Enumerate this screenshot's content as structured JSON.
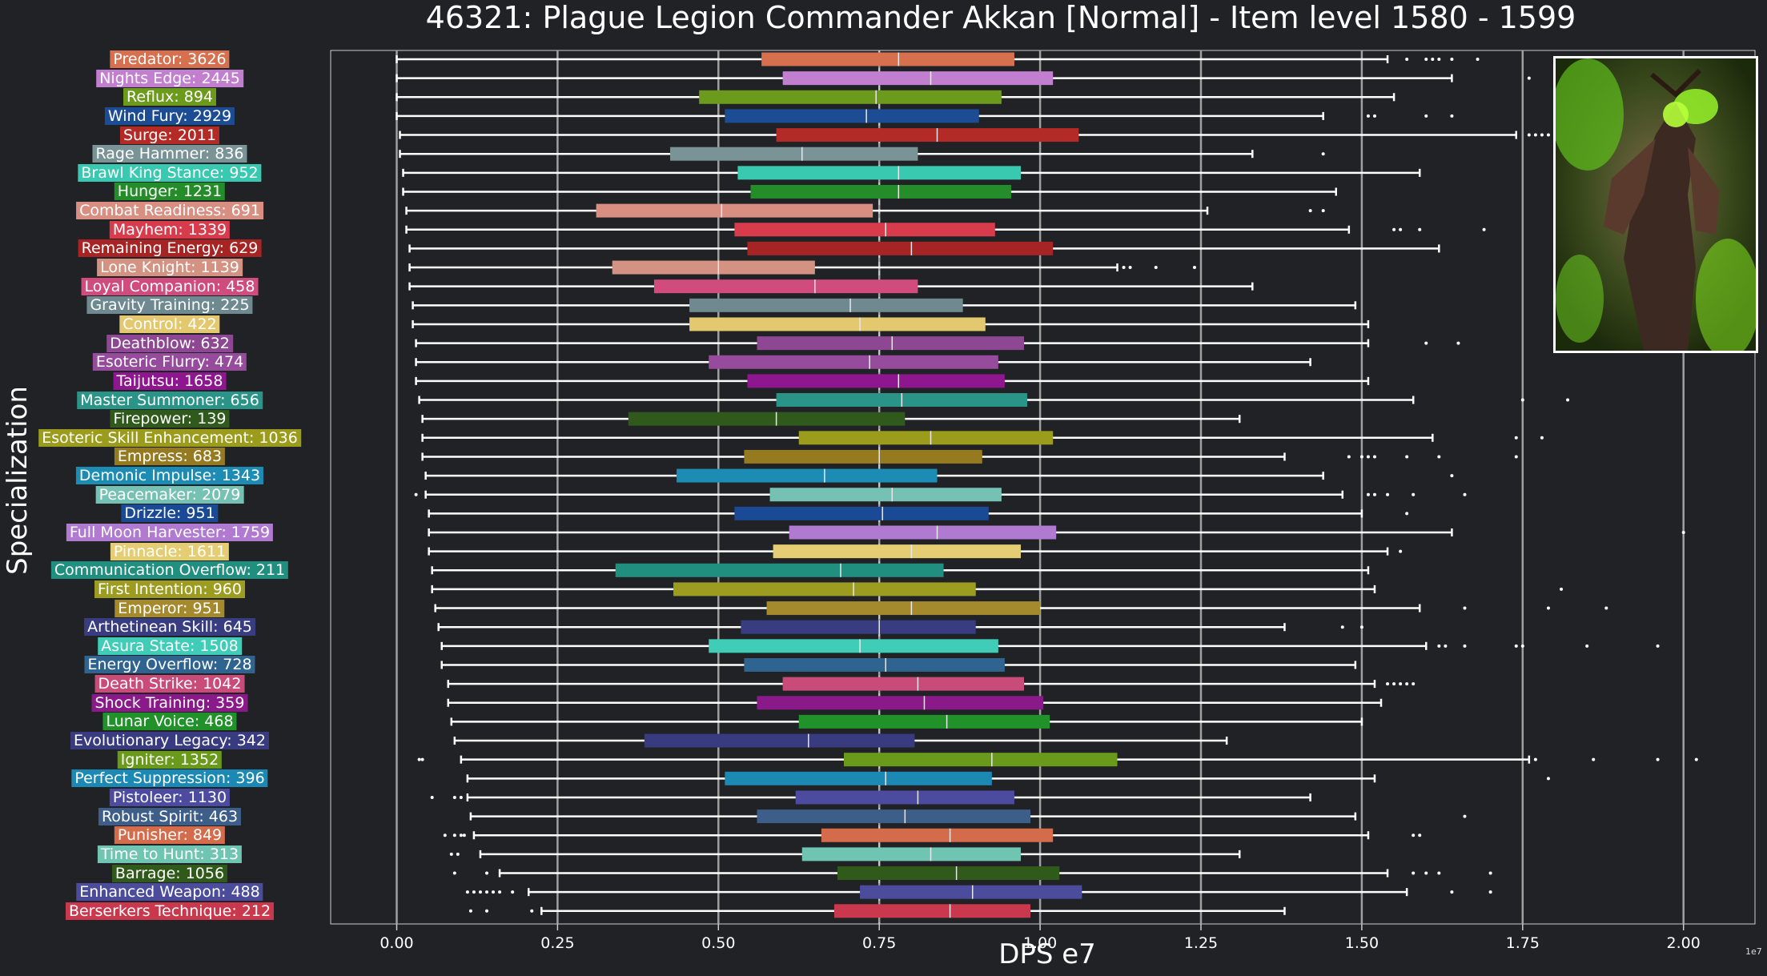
{
  "chart_data": {
    "type": "boxplot",
    "title": "46321: Plague Legion Commander Akkan [Normal] - Item level 1580 - 1599",
    "xlabel": "DPS e7",
    "ylabel": "Specialization",
    "x_offset_label": "1e7",
    "xlim": [
      -0.1,
      2.12
    ],
    "xticks": [
      {
        "value": 0.0,
        "label": "0.00"
      },
      {
        "value": 0.25,
        "label": "0.25"
      },
      {
        "value": 0.5,
        "label": "0.50"
      },
      {
        "value": 0.75,
        "label": "0.75"
      },
      {
        "value": 1.0,
        "label": "1.00"
      },
      {
        "value": 1.25,
        "label": "1.25"
      },
      {
        "value": 1.5,
        "label": "1.50"
      },
      {
        "value": 1.75,
        "label": "1.75"
      },
      {
        "value": 2.0,
        "label": "2.00"
      }
    ],
    "reference_line": 0.75,
    "series": [
      {
        "label": "Predator: 3626",
        "color": "#d6704e",
        "whisker_low": 0.0,
        "q1": 0.567,
        "median": 0.78,
        "q3": 0.96,
        "whisker_high": 1.54,
        "outliers": [
          1.57,
          1.6,
          1.61,
          1.62,
          1.64,
          1.68
        ]
      },
      {
        "label": "Nights Edge: 2445",
        "color": "#c27ecf",
        "whisker_low": 0.0,
        "q1": 0.6,
        "median": 0.83,
        "q3": 1.02,
        "whisker_high": 1.64,
        "outliers": [
          1.76
        ]
      },
      {
        "label": "Reflux: 894",
        "color": "#6b9a1c",
        "whisker_low": 0.0,
        "q1": 0.47,
        "median": 0.745,
        "q3": 0.94,
        "whisker_high": 1.55,
        "outliers": []
      },
      {
        "label": "Wind Fury: 2929",
        "color": "#1c4c94",
        "whisker_low": 0.0,
        "q1": 0.51,
        "median": 0.73,
        "q3": 0.905,
        "whisker_high": 1.44,
        "outliers": [
          1.51,
          1.52,
          1.6,
          1.64
        ]
      },
      {
        "label": "Surge: 2011",
        "color": "#b42a27",
        "whisker_low": 0.005,
        "q1": 0.59,
        "median": 0.84,
        "q3": 1.06,
        "whisker_high": 1.74,
        "outliers": [
          1.76,
          1.77,
          1.78,
          1.79,
          1.8
        ]
      },
      {
        "label": "Rage Hammer: 836",
        "color": "#7a9396",
        "whisker_low": 0.005,
        "q1": 0.425,
        "median": 0.63,
        "q3": 0.81,
        "whisker_high": 1.33,
        "outliers": [
          1.44
        ]
      },
      {
        "label": "Brawl King Stance: 952",
        "color": "#38c9b0",
        "whisker_low": 0.01,
        "q1": 0.53,
        "median": 0.78,
        "q3": 0.97,
        "whisker_high": 1.59,
        "outliers": []
      },
      {
        "label": "Hunger: 1231",
        "color": "#248c28",
        "whisker_low": 0.01,
        "q1": 0.55,
        "median": 0.78,
        "q3": 0.955,
        "whisker_high": 1.46,
        "outliers": []
      },
      {
        "label": "Combat Readiness: 691",
        "color": "#d98e82",
        "whisker_low": 0.015,
        "q1": 0.31,
        "median": 0.505,
        "q3": 0.74,
        "whisker_high": 1.26,
        "outliers": [
          1.42,
          1.44
        ]
      },
      {
        "label": "Mayhem: 1339",
        "color": "#d83c4c",
        "whisker_low": 0.015,
        "q1": 0.525,
        "median": 0.76,
        "q3": 0.93,
        "whisker_high": 1.48,
        "outliers": [
          1.55,
          1.56,
          1.59,
          1.69
        ]
      },
      {
        "label": "Remaining Energy: 629",
        "color": "#a72424",
        "whisker_low": 0.02,
        "q1": 0.545,
        "median": 0.8,
        "q3": 1.02,
        "whisker_high": 1.62,
        "outliers": []
      },
      {
        "label": "Lone Knight: 1139",
        "color": "#d39282",
        "whisker_low": 0.02,
        "q1": 0.335,
        "median": 0.5,
        "q3": 0.65,
        "whisker_high": 1.12,
        "outliers": [
          1.13,
          1.14,
          1.18,
          1.24
        ]
      },
      {
        "label": "Loyal Companion: 458",
        "color": "#cf4c7c",
        "whisker_low": 0.02,
        "q1": 0.4,
        "median": 0.65,
        "q3": 0.81,
        "whisker_high": 1.33,
        "outliers": []
      },
      {
        "label": "Gravity Training: 225",
        "color": "#6e8a90",
        "whisker_low": 0.025,
        "q1": 0.455,
        "median": 0.705,
        "q3": 0.88,
        "whisker_high": 1.49,
        "outliers": []
      },
      {
        "label": "Control: 422",
        "color": "#e3c870",
        "whisker_low": 0.025,
        "q1": 0.455,
        "median": 0.72,
        "q3": 0.915,
        "whisker_high": 1.51,
        "outliers": []
      },
      {
        "label": "Deathblow: 632",
        "color": "#8e4893",
        "whisker_low": 0.03,
        "q1": 0.56,
        "median": 0.77,
        "q3": 0.975,
        "whisker_high": 1.51,
        "outliers": [
          1.6,
          1.65
        ]
      },
      {
        "label": "Esoteric Flurry: 474",
        "color": "#964b9c",
        "whisker_low": 0.03,
        "q1": 0.485,
        "median": 0.735,
        "q3": 0.935,
        "whisker_high": 1.42,
        "outliers": []
      },
      {
        "label": "Taijutsu: 1658",
        "color": "#8e168e",
        "whisker_low": 0.03,
        "q1": 0.545,
        "median": 0.78,
        "q3": 0.945,
        "whisker_high": 1.51,
        "outliers": []
      },
      {
        "label": "Master Summoner: 656",
        "color": "#2a9488",
        "whisker_low": 0.035,
        "q1": 0.59,
        "median": 0.785,
        "q3": 0.98,
        "whisker_high": 1.58,
        "outliers": [
          1.75,
          1.82
        ]
      },
      {
        "label": "Firepower: 139",
        "color": "#2f5a1b",
        "whisker_low": 0.04,
        "q1": 0.36,
        "median": 0.59,
        "q3": 0.79,
        "whisker_high": 1.31,
        "outliers": []
      },
      {
        "label": "Esoteric Skill Enhancement: 1036",
        "color": "#9c9c1c",
        "whisker_low": 0.04,
        "q1": 0.625,
        "median": 0.83,
        "q3": 1.02,
        "whisker_high": 1.61,
        "outliers": [
          1.74,
          1.78
        ]
      },
      {
        "label": "Empress: 683",
        "color": "#957a20",
        "whisker_low": 0.04,
        "q1": 0.54,
        "median": 0.75,
        "q3": 0.91,
        "whisker_high": 1.38,
        "outliers": [
          1.48,
          1.5,
          1.51,
          1.52,
          1.57,
          1.62,
          1.74
        ]
      },
      {
        "label": "Demonic Impulse: 1343",
        "color": "#1c8cb4",
        "whisker_low": 0.045,
        "q1": 0.435,
        "median": 0.665,
        "q3": 0.84,
        "whisker_high": 1.44,
        "outliers": [
          1.64
        ]
      },
      {
        "label": "Peacemaker: 2079",
        "color": "#75c2b4",
        "whisker_low": 0.045,
        "q1": 0.58,
        "median": 0.77,
        "q3": 0.94,
        "whisker_high": 1.47,
        "outliers": [
          0.03,
          1.51,
          1.52,
          1.54,
          1.58,
          1.66
        ]
      },
      {
        "label": "Drizzle: 951",
        "color": "#1a4a96",
        "whisker_low": 0.05,
        "q1": 0.525,
        "median": 0.755,
        "q3": 0.92,
        "whisker_high": 1.5,
        "outliers": [
          1.57
        ]
      },
      {
        "label": "Full Moon Harvester: 1759",
        "color": "#b07ad0",
        "whisker_low": 0.05,
        "q1": 0.61,
        "median": 0.84,
        "q3": 1.025,
        "whisker_high": 1.64,
        "outliers": [
          2.0
        ]
      },
      {
        "label": "Pinnacle: 1611",
        "color": "#e5cd73",
        "whisker_low": 0.05,
        "q1": 0.585,
        "median": 0.8,
        "q3": 0.97,
        "whisker_high": 1.54,
        "outliers": [
          1.56
        ]
      },
      {
        "label": "Communication Overflow: 211",
        "color": "#218f7f",
        "whisker_low": 0.055,
        "q1": 0.34,
        "median": 0.69,
        "q3": 0.85,
        "whisker_high": 1.51,
        "outliers": []
      },
      {
        "label": "First Intention: 960",
        "color": "#9c9c20",
        "whisker_low": 0.055,
        "q1": 0.43,
        "median": 0.71,
        "q3": 0.9,
        "whisker_high": 1.52,
        "outliers": [
          1.81
        ]
      },
      {
        "label": "Emperor: 951",
        "color": "#a5892d",
        "whisker_low": 0.06,
        "q1": 0.575,
        "median": 0.8,
        "q3": 1.0,
        "whisker_high": 1.59,
        "outliers": [
          1.66,
          1.79,
          1.88
        ]
      },
      {
        "label": "Arthetinean Skill: 645",
        "color": "#383c80",
        "whisker_low": 0.065,
        "q1": 0.535,
        "median": 0.75,
        "q3": 0.9,
        "whisker_high": 1.38,
        "outliers": [
          1.47,
          1.5
        ]
      },
      {
        "label": "Asura State: 1508",
        "color": "#3fcdb8",
        "whisker_low": 0.07,
        "q1": 0.485,
        "median": 0.72,
        "q3": 0.935,
        "whisker_high": 1.6,
        "outliers": [
          1.62,
          1.63,
          1.66,
          1.74,
          1.75,
          1.85,
          1.96
        ]
      },
      {
        "label": "Energy Overflow: 728",
        "color": "#2f6490",
        "whisker_low": 0.07,
        "q1": 0.54,
        "median": 0.76,
        "q3": 0.945,
        "whisker_high": 1.49,
        "outliers": []
      },
      {
        "label": "Death Strike: 1042",
        "color": "#c94b77",
        "whisker_low": 0.08,
        "q1": 0.6,
        "median": 0.81,
        "q3": 0.975,
        "whisker_high": 1.52,
        "outliers": [
          1.54,
          1.55,
          1.56,
          1.57,
          1.58
        ]
      },
      {
        "label": "Shock Training: 359",
        "color": "#8a1a8a",
        "whisker_low": 0.08,
        "q1": 0.56,
        "median": 0.82,
        "q3": 1.005,
        "whisker_high": 1.53,
        "outliers": []
      },
      {
        "label": "Lunar Voice: 468",
        "color": "#21922a",
        "whisker_low": 0.085,
        "q1": 0.625,
        "median": 0.855,
        "q3": 1.015,
        "whisker_high": 1.5,
        "outliers": []
      },
      {
        "label": "Evolutionary Legacy: 342",
        "color": "#393b80",
        "whisker_low": 0.09,
        "q1": 0.385,
        "median": 0.64,
        "q3": 0.805,
        "whisker_high": 1.29,
        "outliers": []
      },
      {
        "label": "Igniter: 1352",
        "color": "#6a9a1c",
        "whisker_low": 0.1,
        "q1": 0.695,
        "median": 0.925,
        "q3": 1.12,
        "whisker_high": 1.76,
        "outliers": [
          0.035,
          0.04,
          1.77,
          1.86,
          1.96,
          2.02
        ]
      },
      {
        "label": "Perfect Suppression: 396",
        "color": "#1b89b4",
        "whisker_low": 0.11,
        "q1": 0.51,
        "median": 0.76,
        "q3": 0.925,
        "whisker_high": 1.52,
        "outliers": [
          1.79
        ]
      },
      {
        "label": "Pistoleer: 1130",
        "color": "#4c4ba0",
        "whisker_low": 0.11,
        "q1": 0.62,
        "median": 0.81,
        "q3": 0.96,
        "whisker_high": 1.42,
        "outliers": [
          0.055,
          0.09,
          0.1
        ]
      },
      {
        "label": "Robust Spirit: 463",
        "color": "#3d5e88",
        "whisker_low": 0.115,
        "q1": 0.56,
        "median": 0.79,
        "q3": 0.985,
        "whisker_high": 1.49,
        "outliers": [
          1.66
        ]
      },
      {
        "label": "Punisher: 849",
        "color": "#d46c4c",
        "whisker_low": 0.12,
        "q1": 0.66,
        "median": 0.86,
        "q3": 1.02,
        "whisker_high": 1.51,
        "outliers": [
          0.075,
          0.09,
          0.1,
          0.105,
          1.58,
          1.59
        ]
      },
      {
        "label": "Time to Hunt: 313",
        "color": "#70c4b2",
        "whisker_low": 0.13,
        "q1": 0.63,
        "median": 0.83,
        "q3": 0.97,
        "whisker_high": 1.31,
        "outliers": [
          0.085,
          0.095
        ]
      },
      {
        "label": "Barrage: 1056",
        "color": "#2f5a1a",
        "whisker_low": 0.16,
        "q1": 0.685,
        "median": 0.87,
        "q3": 1.03,
        "whisker_high": 1.54,
        "outliers": [
          0.09,
          0.14,
          1.58,
          1.6,
          1.62,
          1.7
        ]
      },
      {
        "label": "Enhanced Weapon: 488",
        "color": "#4c4c9c",
        "whisker_low": 0.205,
        "q1": 0.72,
        "median": 0.895,
        "q3": 1.065,
        "whisker_high": 1.57,
        "outliers": [
          0.11,
          0.12,
          0.13,
          0.14,
          0.15,
          0.16,
          0.18,
          1.64,
          1.7
        ]
      },
      {
        "label": "Berserkers Technique: 212",
        "color": "#c9384c",
        "whisker_low": 0.225,
        "q1": 0.68,
        "median": 0.86,
        "q3": 0.985,
        "whisker_high": 1.38,
        "outliers": [
          0.115,
          0.14,
          0.21
        ]
      }
    ]
  },
  "colors": {
    "background": "#202226",
    "grid": "#a0a0a0",
    "text": "#ffffff",
    "whisker": "#ffffff"
  },
  "boss_portrait": {
    "name": "boss-portrait-image"
  }
}
